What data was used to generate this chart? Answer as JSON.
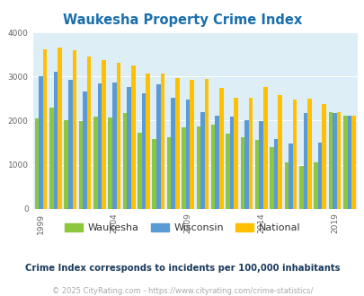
{
  "title": "Waukesha Property Crime Index",
  "title_color": "#1a6fad",
  "years": [
    1999,
    2000,
    2001,
    2002,
    2003,
    2004,
    2005,
    2006,
    2007,
    2008,
    2009,
    2010,
    2011,
    2012,
    2013,
    2014,
    2015,
    2016,
    2017,
    2018,
    2019,
    2020
  ],
  "waukesha": [
    2060,
    2300,
    2000,
    1980,
    2100,
    2080,
    2170,
    1730,
    1580,
    1620,
    1840,
    1860,
    1910,
    1710,
    1620,
    1560,
    1400,
    1050,
    980,
    1060,
    2200,
    2110
  ],
  "wisconsin": [
    3000,
    3100,
    2920,
    2670,
    2850,
    2860,
    2760,
    2620,
    2820,
    2510,
    2470,
    2200,
    2120,
    2090,
    2010,
    1980,
    1590,
    1480,
    2180,
    1510,
    2180,
    2110
  ],
  "national": [
    3620,
    3660,
    3600,
    3460,
    3380,
    3310,
    3250,
    3070,
    3060,
    2960,
    2930,
    2940,
    2750,
    2520,
    2510,
    2760,
    2590,
    2470,
    2490,
    2380,
    2200,
    2110
  ],
  "waukesha_color": "#8dc63f",
  "wisconsin_color": "#5b9bd5",
  "national_color": "#ffc000",
  "bg_color": "#deeef7",
  "ylim": [
    0,
    4000
  ],
  "subtitle": "Crime Index corresponds to incidents per 100,000 inhabitants",
  "caption": "© 2025 CityRating.com - https://www.cityrating.com/crime-statistics/",
  "subtitle_color": "#1a3a5c",
  "caption_color": "#aaaaaa",
  "tick_years": [
    1999,
    2004,
    2009,
    2014,
    2019
  ]
}
